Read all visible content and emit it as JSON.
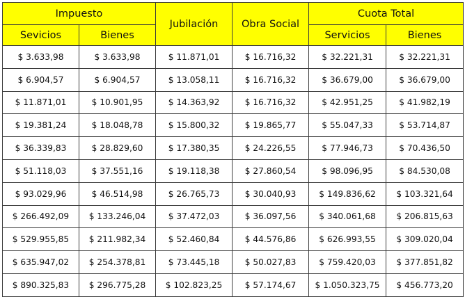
{
  "headers": {
    "impuesto": "Impuesto",
    "jubilacion": "Jubilación",
    "obra_social": "Obra Social",
    "cuota_total": "Cuota Total",
    "impuesto_servicios": "Sevicios",
    "impuesto_bienes": "Bienes",
    "cuota_servicios": "Servicios",
    "cuota_bienes": "Bienes"
  },
  "rows": [
    [
      "$ 3.633,98",
      "$ 3.633,98",
      "$ 11.871,01",
      "$ 16.716,32",
      "$ 32.221,31",
      "$ 32.221,31"
    ],
    [
      "$ 6.904,57",
      "$ 6.904,57",
      "$ 13.058,11",
      "$ 16.716,32",
      "$ 36.679,00",
      "$ 36.679,00"
    ],
    [
      "$ 11.871,01",
      "$ 10.901,95",
      "$ 14.363,92",
      "$ 16.716,32",
      "$ 42.951,25",
      "$ 41.982,19"
    ],
    [
      "$ 19.381,24",
      "$ 18.048,78",
      "$ 15.800,32",
      "$ 19.865,77",
      "$ 55.047,33",
      "$ 53.714,87"
    ],
    [
      "$ 36.339,83",
      "$ 28.829,60",
      "$ 17.380,35",
      "$ 24.226,55",
      "$ 77.946,73",
      "$ 70.436,50"
    ],
    [
      "$ 51.118,03",
      "$ 37.551,16",
      "$ 19.118,38",
      "$ 27.860,54",
      "$ 98.096,95",
      "$ 84.530,08"
    ],
    [
      "$ 93.029,96",
      "$ 46.514,98",
      "$ 26.765,73",
      "$ 30.040,93",
      "$ 149.836,62",
      "$ 103.321,64"
    ],
    [
      "$ 266.492,09",
      "$ 133.246,04",
      "$ 37.472,03",
      "$ 36.097,56",
      "$ 340.061,68",
      "$ 206.815,63"
    ],
    [
      "$ 529.955,85",
      "$ 211.982,34",
      "$ 52.460,84",
      "$ 44.576,86",
      "$ 626.993,55",
      "$ 309.020,04"
    ],
    [
      "$ 635.947,02",
      "$ 254.378,81",
      "$ 73.445,18",
      "$ 50.027,83",
      "$ 759.420,03",
      "$ 377.851,82"
    ],
    [
      "$ 890.325,83",
      "$ 296.775,28",
      "$ 102.823,25",
      "$ 57.174,67",
      "$ 1.050.323,75",
      "$ 456.773,20"
    ]
  ],
  "colors": {
    "header_bg": "#ffff00",
    "border": "#3a3a3a"
  }
}
